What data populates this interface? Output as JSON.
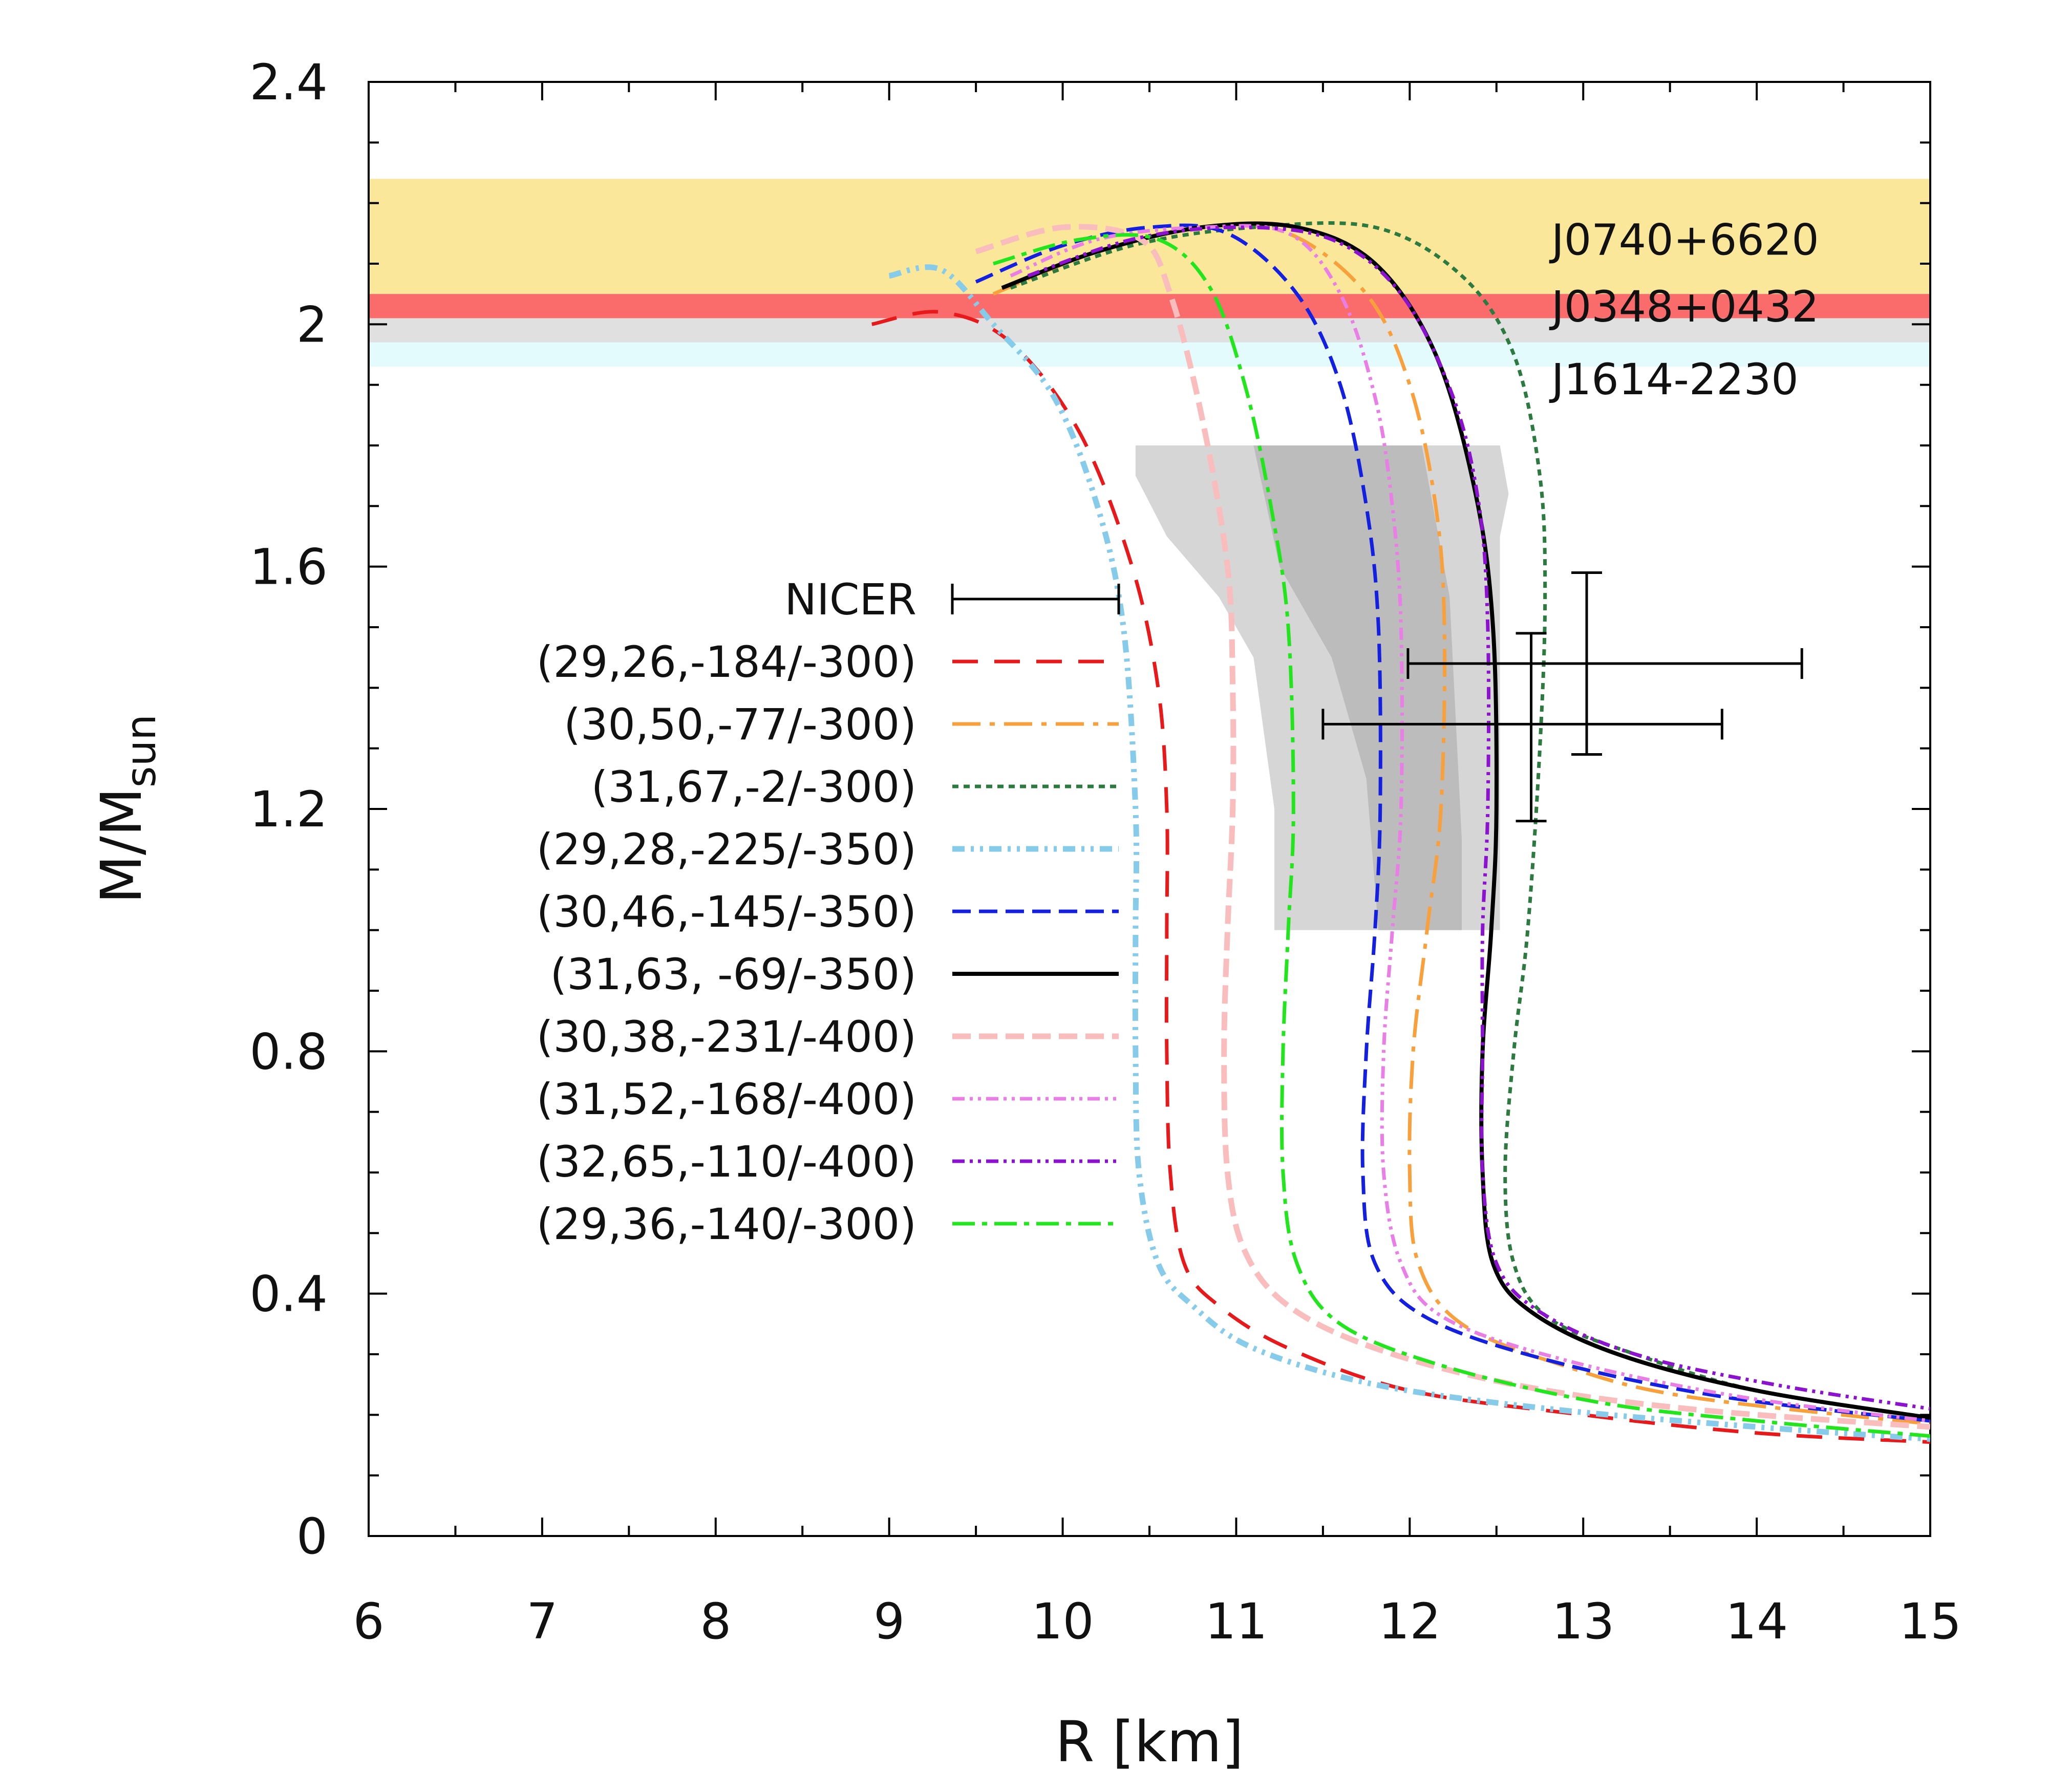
{
  "chart_data": {
    "type": "line",
    "xlabel": "R [km]",
    "ylabel_main": "M/M",
    "ylabel_sub": "sun",
    "xlim": [
      6,
      15
    ],
    "ylim": [
      0,
      2.4
    ],
    "xticks": [
      "6",
      "7",
      "8",
      "9",
      "10",
      "11",
      "12",
      "13",
      "14",
      "15"
    ],
    "yticks": [
      "0",
      "0.4",
      "0.8",
      "1.2",
      "1.6",
      "2",
      "2.4"
    ],
    "bands": [
      {
        "name": "J0740+6620",
        "ymin": 2.05,
        "ymax": 2.24,
        "color": "#fbe79a",
        "label_y": 2.14
      },
      {
        "name": "J0348+0432",
        "ymin": 2.01,
        "ymax": 2.05,
        "color": "#fa6c6c",
        "label_y": 2.03
      },
      {
        "name": "J1614-2230",
        "ymin": 1.97,
        "ymax": 2.01,
        "color": "#e0e0e0",
        "label_y": null
      },
      {
        "name": "",
        "ymin": 1.93,
        "ymax": 1.97,
        "color": "#e3fbfc",
        "label_y": null
      }
    ],
    "band_label_extra": {
      "text": "J1614-2230",
      "y": 1.91
    },
    "nicer_label": "NICER",
    "constraint_regions": [
      {
        "color": "#d6d6d6",
        "points": [
          [
            10.42,
            1.8
          ],
          [
            12.52,
            1.8
          ],
          [
            12.57,
            1.72
          ],
          [
            12.52,
            1.65
          ],
          [
            12.52,
            1.0
          ],
          [
            11.22,
            1.0
          ],
          [
            11.22,
            1.2
          ],
          [
            11.1,
            1.45
          ],
          [
            10.9,
            1.55
          ],
          [
            10.6,
            1.65
          ],
          [
            10.42,
            1.75
          ]
        ]
      },
      {
        "color": "#bcbcbc",
        "points": [
          [
            11.1,
            1.8
          ],
          [
            12.07,
            1.8
          ],
          [
            12.23,
            1.55
          ],
          [
            12.3,
            1.15
          ],
          [
            12.3,
            1.0
          ],
          [
            11.82,
            1.0
          ],
          [
            11.75,
            1.25
          ],
          [
            11.55,
            1.45
          ],
          [
            11.25,
            1.6
          ]
        ]
      }
    ],
    "error_bars": [
      {
        "x": 12.7,
        "y": 1.34,
        "xerr": [
          1.2,
          1.1
        ],
        "yerr": [
          0.16,
          0.15
        ]
      },
      {
        "x": 13.02,
        "y": 1.44,
        "xerr": [
          1.03,
          1.24
        ],
        "yerr": [
          0.15,
          0.15
        ]
      }
    ],
    "series": [
      {
        "name": "(29,26,-184/-300)",
        "color": "#e8191b",
        "dash": "50,32",
        "width": 7,
        "points": [
          [
            8.9,
            2.0
          ],
          [
            9.3,
            2.02
          ],
          [
            9.7,
            1.97
          ],
          [
            10.1,
            1.82
          ],
          [
            10.4,
            1.6
          ],
          [
            10.55,
            1.4
          ],
          [
            10.6,
            1.2
          ],
          [
            10.6,
            1.0
          ],
          [
            10.6,
            0.8
          ],
          [
            10.62,
            0.6
          ],
          [
            10.7,
            0.45
          ],
          [
            10.9,
            0.38
          ],
          [
            11.3,
            0.31
          ],
          [
            12.0,
            0.24
          ],
          [
            13.0,
            0.2
          ],
          [
            14.0,
            0.17
          ],
          [
            15.0,
            0.155
          ]
        ]
      },
      {
        "name": "(30,50,-77/-300)",
        "color": "#f7a03c",
        "dash": "55,18,10,18",
        "width": 7,
        "points": [
          [
            9.6,
            2.05
          ],
          [
            10.2,
            2.12
          ],
          [
            10.8,
            2.16
          ],
          [
            11.3,
            2.15
          ],
          [
            11.75,
            2.05
          ],
          [
            12.0,
            1.9
          ],
          [
            12.15,
            1.7
          ],
          [
            12.2,
            1.5
          ],
          [
            12.18,
            1.2
          ],
          [
            12.1,
            1.0
          ],
          [
            12.02,
            0.8
          ],
          [
            12.0,
            0.6
          ],
          [
            12.05,
            0.45
          ],
          [
            12.3,
            0.35
          ],
          [
            12.9,
            0.28
          ],
          [
            13.6,
            0.23
          ],
          [
            15.0,
            0.185
          ]
        ]
      },
      {
        "name": "(31,67,-2/-300)",
        "color": "#2c7a3f",
        "dash": "12,10",
        "width": 7,
        "points": [
          [
            9.7,
            2.06
          ],
          [
            10.4,
            2.13
          ],
          [
            11.1,
            2.16
          ],
          [
            11.8,
            2.16
          ],
          [
            12.3,
            2.08
          ],
          [
            12.6,
            1.95
          ],
          [
            12.75,
            1.75
          ],
          [
            12.78,
            1.55
          ],
          [
            12.75,
            1.3
          ],
          [
            12.68,
            1.0
          ],
          [
            12.6,
            0.8
          ],
          [
            12.55,
            0.6
          ],
          [
            12.6,
            0.45
          ],
          [
            12.8,
            0.36
          ],
          [
            13.3,
            0.3
          ],
          [
            14.0,
            0.24
          ],
          [
            15.0,
            0.195
          ]
        ]
      },
      {
        "name": "(29,28,-225/-350)",
        "color": "#86cbe9",
        "dash": "24,12,6,12,6,12",
        "width": 11,
        "points": [
          [
            9.0,
            2.08
          ],
          [
            9.3,
            2.09
          ],
          [
            9.6,
            2.0
          ],
          [
            9.95,
            1.88
          ],
          [
            10.2,
            1.7
          ],
          [
            10.35,
            1.5
          ],
          [
            10.42,
            1.2
          ],
          [
            10.42,
            1.0
          ],
          [
            10.42,
            0.8
          ],
          [
            10.44,
            0.6
          ],
          [
            10.55,
            0.45
          ],
          [
            10.75,
            0.38
          ],
          [
            11.1,
            0.31
          ],
          [
            11.8,
            0.25
          ],
          [
            12.8,
            0.21
          ],
          [
            14.0,
            0.18
          ],
          [
            15.0,
            0.16
          ]
        ]
      },
      {
        "name": "(30,46,-145/-350)",
        "color": "#1420e0",
        "dash": "36,16",
        "width": 7,
        "points": [
          [
            9.5,
            2.07
          ],
          [
            10.0,
            2.13
          ],
          [
            10.5,
            2.16
          ],
          [
            10.95,
            2.15
          ],
          [
            11.35,
            2.05
          ],
          [
            11.6,
            1.9
          ],
          [
            11.75,
            1.7
          ],
          [
            11.82,
            1.5
          ],
          [
            11.83,
            1.2
          ],
          [
            11.8,
            1.0
          ],
          [
            11.75,
            0.8
          ],
          [
            11.73,
            0.6
          ],
          [
            11.8,
            0.45
          ],
          [
            12.1,
            0.36
          ],
          [
            12.8,
            0.29
          ],
          [
            13.8,
            0.23
          ],
          [
            15.0,
            0.19
          ]
        ]
      },
      {
        "name": "(31,63, -69/-350)",
        "color": "#000000",
        "dash": "none",
        "width": 8,
        "points": [
          [
            9.65,
            2.06
          ],
          [
            10.2,
            2.12
          ],
          [
            10.8,
            2.16
          ],
          [
            11.35,
            2.16
          ],
          [
            11.8,
            2.1
          ],
          [
            12.15,
            1.95
          ],
          [
            12.38,
            1.72
          ],
          [
            12.48,
            1.5
          ],
          [
            12.5,
            1.2
          ],
          [
            12.47,
            1.0
          ],
          [
            12.42,
            0.8
          ],
          [
            12.42,
            0.6
          ],
          [
            12.48,
            0.45
          ],
          [
            12.7,
            0.37
          ],
          [
            13.2,
            0.3
          ],
          [
            14.0,
            0.24
          ],
          [
            15.0,
            0.195
          ]
        ]
      },
      {
        "name": "(30,38,-231/-400)",
        "color": "#f9bdbd",
        "dash": "36,16",
        "width": 11,
        "points": [
          [
            9.5,
            2.12
          ],
          [
            10.0,
            2.16
          ],
          [
            10.45,
            2.14
          ],
          [
            10.62,
            2.05
          ],
          [
            10.8,
            1.85
          ],
          [
            10.95,
            1.6
          ],
          [
            10.98,
            1.4
          ],
          [
            10.98,
            1.2
          ],
          [
            10.95,
            1.0
          ],
          [
            10.93,
            0.8
          ],
          [
            10.95,
            0.6
          ],
          [
            11.05,
            0.47
          ],
          [
            11.3,
            0.38
          ],
          [
            11.8,
            0.31
          ],
          [
            12.6,
            0.25
          ],
          [
            13.6,
            0.21
          ],
          [
            15.0,
            0.18
          ]
        ]
      },
      {
        "name": "(31,52,-168/-400)",
        "color": "#e87ee6",
        "dash": "24,10,6,10,6,10",
        "width": 7,
        "points": [
          [
            9.7,
            2.08
          ],
          [
            10.2,
            2.14
          ],
          [
            10.8,
            2.16
          ],
          [
            11.3,
            2.15
          ],
          [
            11.6,
            2.05
          ],
          [
            11.8,
            1.88
          ],
          [
            11.9,
            1.7
          ],
          [
            11.95,
            1.5
          ],
          [
            11.95,
            1.2
          ],
          [
            11.9,
            1.0
          ],
          [
            11.85,
            0.8
          ],
          [
            11.85,
            0.6
          ],
          [
            11.95,
            0.45
          ],
          [
            12.2,
            0.36
          ],
          [
            12.9,
            0.29
          ],
          [
            13.9,
            0.23
          ],
          [
            15.0,
            0.19
          ]
        ]
      },
      {
        "name": "(32,65,-110/-400)",
        "color": "#8d12cf",
        "dash": "24,10,6,10,6,10",
        "width": 7,
        "points": [
          [
            9.8,
            2.08
          ],
          [
            10.4,
            2.14
          ],
          [
            11.0,
            2.16
          ],
          [
            11.55,
            2.14
          ],
          [
            11.95,
            2.05
          ],
          [
            12.25,
            1.88
          ],
          [
            12.4,
            1.7
          ],
          [
            12.45,
            1.5
          ],
          [
            12.45,
            1.2
          ],
          [
            12.42,
            1.0
          ],
          [
            12.42,
            0.8
          ],
          [
            12.42,
            0.6
          ],
          [
            12.5,
            0.45
          ],
          [
            12.75,
            0.37
          ],
          [
            13.3,
            0.3
          ],
          [
            14.1,
            0.25
          ],
          [
            15.0,
            0.21
          ]
        ]
      },
      {
        "name": "(29,36,-140/-300)",
        "color": "#22e51d",
        "dash": "44,14,10,14",
        "width": 7,
        "points": [
          [
            9.6,
            2.1
          ],
          [
            10.1,
            2.14
          ],
          [
            10.55,
            2.14
          ],
          [
            10.85,
            2.06
          ],
          [
            11.05,
            1.9
          ],
          [
            11.2,
            1.7
          ],
          [
            11.3,
            1.5
          ],
          [
            11.33,
            1.2
          ],
          [
            11.3,
            1.0
          ],
          [
            11.27,
            0.8
          ],
          [
            11.27,
            0.6
          ],
          [
            11.35,
            0.45
          ],
          [
            11.6,
            0.35
          ],
          [
            12.2,
            0.28
          ],
          [
            13.1,
            0.22
          ],
          [
            14.0,
            0.19
          ],
          [
            15.0,
            0.165
          ]
        ]
      }
    ]
  }
}
